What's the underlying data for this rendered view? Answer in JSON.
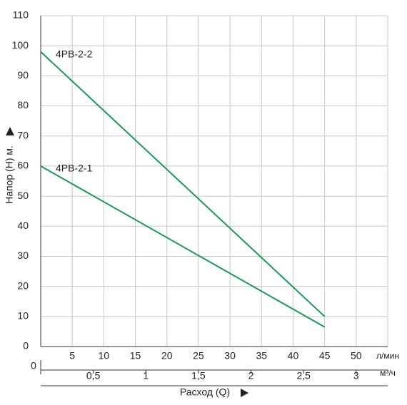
{
  "chart_data": {
    "type": "line",
    "y_label": "Напор (Н) м.",
    "x_label": "Расход (Q)",
    "x_unit": "л/мин",
    "x2_unit": "м³/ч",
    "x": [
      0,
      45
    ],
    "series": [
      {
        "name": "4PB-2-2",
        "color": "#1a9a55",
        "values": [
          98,
          10
        ]
      },
      {
        "name": "4PB-2-1",
        "color": "#1a9a55",
        "values": [
          60,
          6.5
        ]
      }
    ],
    "xlim": [
      0,
      55
    ],
    "xticks": [
      5,
      10,
      15,
      20,
      25,
      30,
      35,
      40,
      45,
      50
    ],
    "ylim": [
      0,
      110
    ],
    "yticks": [
      0,
      10,
      20,
      30,
      40,
      50,
      60,
      70,
      80,
      90,
      100,
      110
    ],
    "x2lim": [
      0,
      3.3
    ],
    "x2ticks": [
      0,
      {
        "value": 0.5,
        "label": "0,5"
      },
      1,
      {
        "value": 1.5,
        "label": "1,5"
      },
      2,
      {
        "value": 2.5,
        "label": "2,5"
      },
      3
    ],
    "grid": true
  }
}
